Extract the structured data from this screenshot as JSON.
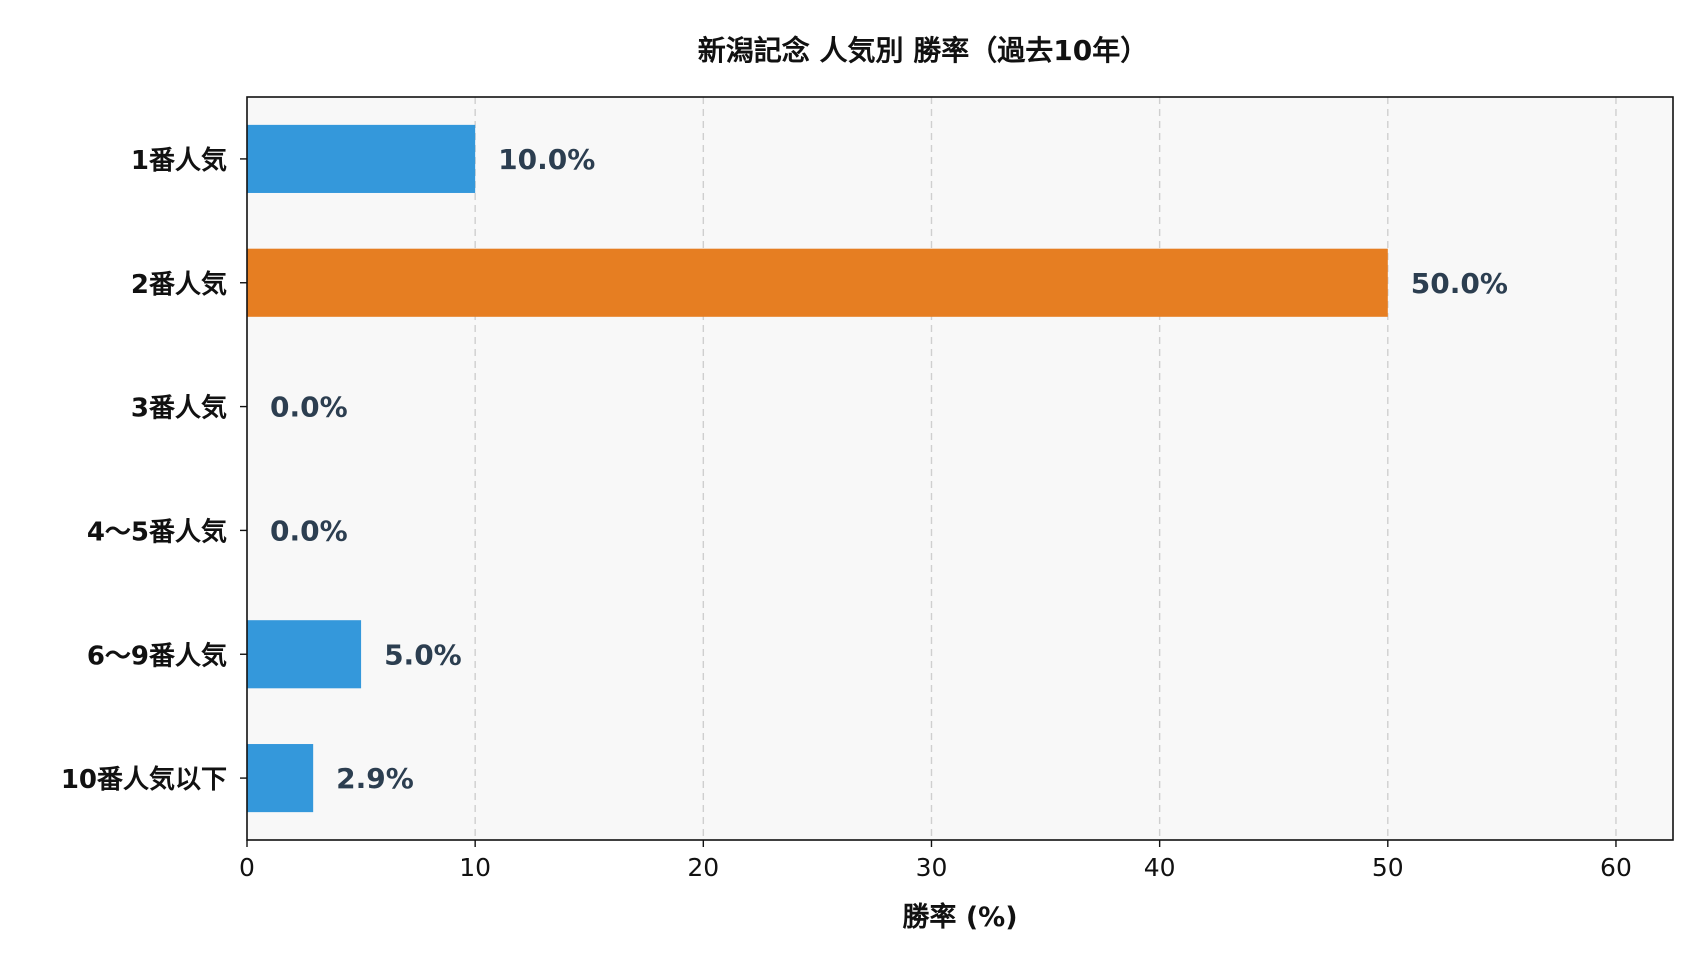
{
  "chart_data": {
    "type": "bar",
    "orientation": "horizontal",
    "title": "新潟記念 人気別 勝率（過去10年）",
    "xlabel": "勝率 (%)",
    "ylabel": "",
    "categories": [
      "1番人気",
      "2番人気",
      "3番人気",
      "4〜5番人気",
      "6〜9番人気",
      "10番人気以下"
    ],
    "values": [
      10.0,
      50.0,
      0.0,
      0.0,
      5.0,
      2.9
    ],
    "value_labels": [
      "10.0%",
      "50.0%",
      "0.0%",
      "0.0%",
      "5.0%",
      "2.9%"
    ],
    "bar_colors": [
      "#3498db",
      "#e67e22",
      "#3498db",
      "#3498db",
      "#3498db",
      "#3498db"
    ],
    "xlim": [
      0,
      62.5
    ],
    "xticks": [
      0,
      10,
      20,
      30,
      40,
      50,
      60
    ],
    "xtick_labels": [
      "0",
      "10",
      "20",
      "30",
      "40",
      "50",
      "60"
    ],
    "grid": "x-dashed",
    "plot_background": "#f8f8f8",
    "value_label_color": "#2c3e50"
  }
}
